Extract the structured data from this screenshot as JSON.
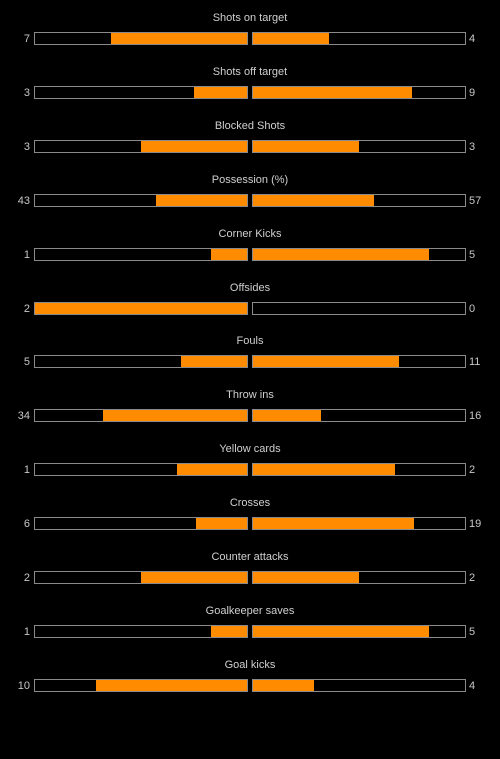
{
  "colors": {
    "background": "#000000",
    "fill": "#ff8c00",
    "bar_border": "#8a8a8a",
    "text": "#c8c8c8"
  },
  "stats": [
    {
      "label": "Shots on target",
      "home": "7",
      "away": "4",
      "home_share": 0.64,
      "away_share": 0.36
    },
    {
      "label": "Shots off target",
      "home": "3",
      "away": "9",
      "home_share": 0.25,
      "away_share": 0.75
    },
    {
      "label": "Blocked Shots",
      "home": "3",
      "away": "3",
      "home_share": 0.5,
      "away_share": 0.5
    },
    {
      "label": "Possession (%)",
      "home": "43",
      "away": "57",
      "home_share": 0.43,
      "away_share": 0.57
    },
    {
      "label": "Corner Kicks",
      "home": "1",
      "away": "5",
      "home_share": 0.17,
      "away_share": 0.83
    },
    {
      "label": "Offsides",
      "home": "2",
      "away": "0",
      "home_share": 1.0,
      "away_share": 0.0
    },
    {
      "label": "Fouls",
      "home": "5",
      "away": "11",
      "home_share": 0.31,
      "away_share": 0.69
    },
    {
      "label": "Throw ins",
      "home": "34",
      "away": "16",
      "home_share": 0.68,
      "away_share": 0.32
    },
    {
      "label": "Yellow cards",
      "home": "1",
      "away": "2",
      "home_share": 0.33,
      "away_share": 0.67
    },
    {
      "label": "Crosses",
      "home": "6",
      "away": "19",
      "home_share": 0.24,
      "away_share": 0.76
    },
    {
      "label": "Counter attacks",
      "home": "2",
      "away": "2",
      "home_share": 0.5,
      "away_share": 0.5
    },
    {
      "label": "Goalkeeper saves",
      "home": "1",
      "away": "5",
      "home_share": 0.17,
      "away_share": 0.83
    },
    {
      "label": "Goal kicks",
      "home": "10",
      "away": "4",
      "home_share": 0.71,
      "away_share": 0.29
    }
  ]
}
